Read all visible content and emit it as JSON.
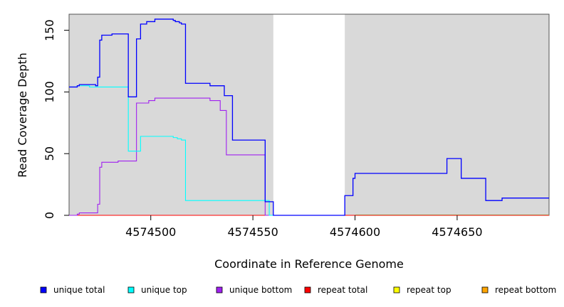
{
  "chart_data": {
    "type": "line",
    "step": true,
    "xlabel": "Coordinate in Reference Genome",
    "ylabel": "Read Coverage Depth",
    "xlim": [
      4574460,
      4574695
    ],
    "ylim": [
      0,
      163
    ],
    "x_ticks": [
      4574500,
      4574550,
      4574600,
      4574650
    ],
    "x_tick_labels": [
      "4574500",
      "4574550",
      "4574600",
      "4574650"
    ],
    "y_ticks": [
      0,
      50,
      100,
      150
    ],
    "y_tick_labels": [
      "0",
      "50",
      "100",
      "150"
    ],
    "background_color": "#d9d9d9",
    "shaded_ranges": [
      [
        4574460,
        4574560
      ],
      [
        4574595,
        4574695
      ]
    ],
    "unshaded_range": [
      4574560,
      4574595
    ],
    "legend_position": "bottom",
    "series": [
      {
        "name": "unique total",
        "color": "#0000ff",
        "x": [
          4574460,
          4574464,
          4574465,
          4574473,
          4574474,
          4574475,
          4574476,
          4574481,
          4574489,
          4574493,
          4574495,
          4574498,
          4574502,
          4574511,
          4574512,
          4574514,
          4574515,
          4574517,
          4574529,
          4574536,
          4574540,
          4574556,
          4574560,
          4574595,
          4574599,
          4574600,
          4574645,
          4574652,
          4574664,
          4574672,
          4574695
        ],
        "y": [
          104,
          105,
          106,
          105,
          112,
          142,
          146,
          147,
          96,
          143,
          155,
          157,
          159,
          158,
          157,
          156,
          155,
          107,
          105,
          97,
          61,
          11,
          0,
          16,
          30,
          34,
          46,
          30,
          12,
          14,
          14
        ]
      },
      {
        "name": "unique top",
        "color": "#00ffff",
        "x": [
          4574460,
          4574464,
          4574470,
          4574489,
          4574495,
          4574511,
          4574513,
          4574515,
          4574517,
          4574556,
          4574558,
          4574560
        ],
        "y": [
          104,
          105,
          104,
          52,
          64,
          63,
          62,
          61,
          12,
          12,
          0,
          0
        ]
      },
      {
        "name": "unique bottom",
        "color": "#a020f0",
        "x": [
          4574460,
          4574464,
          4574465,
          4574473,
          4574474,
          4574475,
          4574476,
          4574484,
          4574493,
          4574499,
          4574502,
          4574529,
          4574534,
          4574537,
          4574556,
          4574560
        ],
        "y": [
          0,
          1,
          2,
          2,
          9,
          39,
          43,
          44,
          91,
          93,
          95,
          93,
          85,
          49,
          0,
          0
        ]
      },
      {
        "name": "repeat total",
        "color": "#ff0000",
        "x": [
          4574460,
          4574695
        ],
        "y": [
          0,
          0
        ]
      },
      {
        "name": "repeat top",
        "color": "#ffff00",
        "x": [
          4574460,
          4574695
        ],
        "y": [
          0,
          0
        ]
      },
      {
        "name": "repeat bottom",
        "color": "#ffa500",
        "x": [
          4574460,
          4574560
        ],
        "y": [
          0,
          0
        ]
      }
    ],
    "green_baseline_range": [
      4574600,
      4574695
    ]
  }
}
